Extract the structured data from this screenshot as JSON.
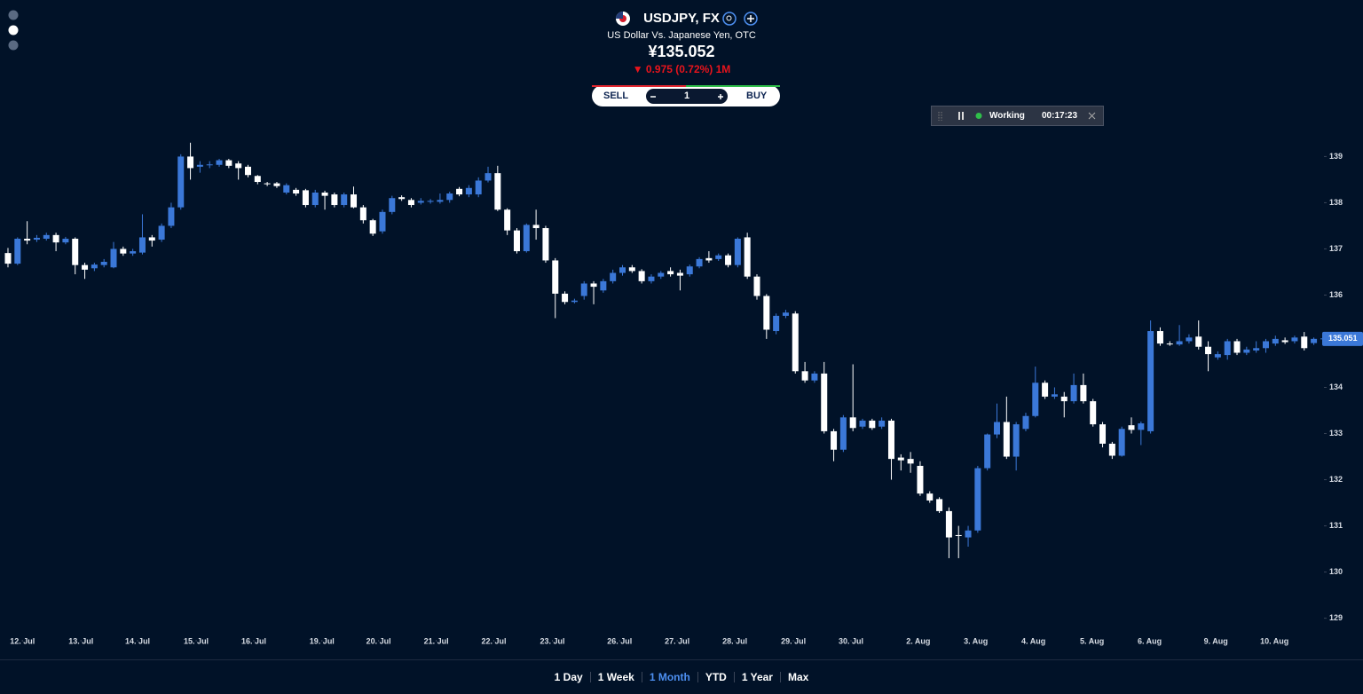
{
  "header": {
    "symbol": "USDJPY, FX",
    "description": "US Dollar Vs. Japanese Yen, OTC",
    "price": "¥135.052",
    "change": "▼ 0.975 (0.72%) 1M"
  },
  "trade": {
    "sell": "SELL",
    "quantity": "1",
    "buy": "BUY"
  },
  "status": {
    "label": "Working",
    "timer": "00:17:23"
  },
  "ranges": [
    "1 Day",
    "1 Week",
    "1 Month",
    "YTD",
    "1 Year",
    "Max"
  ],
  "active_range": 2,
  "chart_data": {
    "type": "candlestick",
    "up_color": "#3b78d8",
    "down_color": "#ffffff",
    "xlim": [
      -0.83,
      136.87
    ],
    "ylim": [
      128.55,
      139.7
    ],
    "yticks": [
      129,
      130,
      131,
      132,
      133,
      134,
      135,
      136,
      137,
      138,
      139
    ],
    "xticks": [
      {
        "value": 1.5,
        "label": "12. Jul"
      },
      {
        "value": 7.6,
        "label": "13. Jul"
      },
      {
        "value": 13.5,
        "label": "14. Jul"
      },
      {
        "value": 19.6,
        "label": "15. Jul"
      },
      {
        "value": 25.6,
        "label": "16. Jul"
      },
      {
        "value": 32.7,
        "label": "19. Jul"
      },
      {
        "value": 38.6,
        "label": "20. Jul"
      },
      {
        "value": 44.6,
        "label": "21. Jul"
      },
      {
        "value": 50.6,
        "label": "22. Jul"
      },
      {
        "value": 56.7,
        "label": "23. Jul"
      },
      {
        "value": 63.7,
        "label": "26. Jul"
      },
      {
        "value": 69.7,
        "label": "27. Jul"
      },
      {
        "value": 75.7,
        "label": "28. Jul"
      },
      {
        "value": 81.8,
        "label": "29. Jul"
      },
      {
        "value": 87.8,
        "label": "30. Jul"
      },
      {
        "value": 94.8,
        "label": "2. Aug"
      },
      {
        "value": 100.8,
        "label": "3. Aug"
      },
      {
        "value": 106.8,
        "label": "4. Aug"
      },
      {
        "value": 112.9,
        "label": "5. Aug"
      },
      {
        "value": 118.9,
        "label": "6. Aug"
      },
      {
        "value": 125.8,
        "label": "9. Aug"
      },
      {
        "value": 131.9,
        "label": "10. Aug"
      }
    ],
    "last_price": 135.051,
    "open": [
      136.91,
      136.68,
      137.22,
      137.2,
      137.22,
      137.3,
      137.14,
      137.22,
      136.65,
      136.58,
      136.65,
      136.6,
      137.0,
      136.9,
      136.92,
      137.25,
      137.2,
      137.5,
      137.9,
      139.0,
      138.78,
      138.82,
      138.82,
      138.92,
      138.85,
      138.78,
      138.58,
      138.42,
      138.42,
      138.22,
      138.28,
      138.27,
      137.95,
      138.22,
      138.18,
      137.95,
      138.18,
      137.9,
      137.62,
      137.38,
      137.8,
      138.12,
      138.06,
      138.0,
      138.02,
      138.02,
      138.06,
      138.3,
      138.18,
      138.18,
      138.48,
      138.64,
      137.85,
      137.4,
      136.95,
      137.52,
      137.45,
      136.75,
      136.03,
      135.85,
      135.98,
      136.25,
      136.1,
      136.3,
      136.48,
      136.6,
      136.52,
      136.3,
      136.4,
      136.52,
      136.48,
      136.45,
      136.62,
      136.8,
      136.78,
      136.86,
      136.65,
      137.25,
      136.4,
      135.98,
      135.22,
      135.55,
      135.6,
      134.35,
      134.15,
      134.3,
      133.05,
      132.65,
      133.35,
      133.15,
      133.28,
      133.15,
      133.28,
      132.48,
      132.45,
      132.3,
      131.7,
      131.58,
      131.32,
      130.8,
      130.75,
      130.9,
      132.25,
      132.98,
      133.25,
      132.5,
      133.1,
      133.38,
      134.1,
      133.8,
      133.8,
      133.7,
      134.05,
      133.7,
      133.2,
      132.78,
      132.52,
      133.18,
      133.08,
      133.05,
      135.22,
      134.95,
      134.93,
      135.0,
      135.1,
      134.88,
      134.65,
      134.7,
      135.0,
      134.75,
      134.8,
      134.85,
      134.95,
      135.02,
      135.0,
      135.1,
      134.96
    ],
    "high": [
      137.02,
      137.25,
      137.6,
      137.3,
      137.35,
      137.35,
      137.26,
      137.25,
      136.7,
      136.7,
      136.78,
      137.15,
      137.05,
      137.0,
      137.75,
      137.3,
      137.55,
      138.0,
      139.05,
      139.3,
      138.9,
      138.9,
      138.95,
      138.95,
      138.9,
      138.82,
      138.6,
      138.45,
      138.45,
      138.42,
      138.32,
      138.3,
      138.28,
      138.26,
      138.22,
      138.22,
      138.35,
      137.95,
      137.65,
      137.85,
      138.15,
      138.16,
      138.1,
      138.1,
      138.08,
      138.2,
      138.24,
      138.34,
      138.38,
      138.55,
      138.78,
      138.8,
      137.88,
      137.45,
      137.55,
      137.85,
      137.5,
      136.8,
      136.08,
      135.92,
      136.3,
      136.3,
      136.35,
      136.55,
      136.65,
      136.65,
      136.56,
      136.45,
      136.52,
      136.6,
      136.55,
      136.66,
      136.82,
      136.95,
      136.9,
      136.9,
      137.25,
      137.35,
      136.45,
      136.02,
      135.6,
      135.68,
      135.65,
      134.55,
      134.35,
      134.55,
      133.1,
      133.4,
      134.5,
      133.32,
      133.32,
      133.35,
      133.32,
      132.55,
      132.6,
      132.4,
      131.75,
      131.62,
      131.4,
      131.0,
      131.0,
      132.3,
      133.0,
      133.65,
      133.8,
      133.25,
      133.45,
      134.45,
      134.15,
      134.0,
      133.9,
      134.3,
      134.3,
      133.75,
      133.25,
      132.82,
      133.15,
      133.35,
      133.26,
      135.45,
      135.3,
      135.0,
      135.35,
      135.15,
      135.45,
      135.0,
      134.78,
      135.05,
      135.05,
      134.88,
      135.0,
      135.05,
      135.12,
      135.08,
      135.12,
      135.2,
      135.08
    ],
    "low": [
      136.6,
      136.65,
      137.1,
      137.15,
      137.18,
      136.95,
      137.1,
      136.45,
      136.35,
      136.52,
      136.6,
      136.58,
      136.85,
      136.85,
      136.88,
      137.05,
      137.15,
      137.45,
      137.85,
      138.5,
      138.65,
      138.75,
      138.78,
      138.75,
      138.5,
      138.55,
      138.4,
      138.36,
      138.32,
      138.18,
      138.15,
      137.9,
      137.9,
      137.85,
      137.9,
      137.9,
      137.88,
      137.55,
      137.28,
      137.33,
      137.75,
      138.04,
      137.9,
      137.96,
      137.98,
      137.98,
      138.0,
      138.14,
      138.12,
      138.12,
      138.44,
      137.82,
      137.3,
      136.9,
      136.92,
      137.2,
      136.7,
      135.5,
      135.8,
      135.82,
      135.9,
      135.8,
      136.05,
      136.25,
      136.42,
      136.48,
      136.25,
      136.25,
      136.35,
      136.4,
      136.1,
      136.4,
      136.58,
      136.7,
      136.74,
      136.6,
      136.6,
      136.35,
      135.9,
      135.05,
      135.15,
      135.5,
      134.3,
      134.1,
      134.1,
      133.0,
      132.4,
      132.6,
      133.05,
      133.1,
      133.08,
      133.1,
      132.0,
      132.2,
      132.15,
      131.65,
      131.5,
      131.28,
      130.3,
      130.3,
      130.55,
      130.85,
      132.2,
      132.9,
      132.45,
      132.2,
      133.05,
      133.35,
      133.75,
      133.75,
      133.35,
      133.65,
      133.65,
      133.15,
      132.7,
      132.45,
      132.5,
      133.0,
      132.75,
      133.0,
      134.9,
      134.9,
      134.9,
      134.95,
      134.82,
      134.35,
      134.6,
      134.6,
      134.7,
      134.7,
      134.75,
      134.75,
      134.9,
      134.94,
      134.95,
      134.8,
      134.92
    ],
    "close": [
      136.68,
      137.22,
      137.18,
      137.24,
      137.3,
      137.14,
      137.22,
      136.65,
      136.55,
      136.66,
      136.72,
      137.0,
      136.9,
      136.95,
      137.25,
      137.18,
      137.5,
      137.9,
      139.0,
      138.75,
      138.82,
      138.83,
      138.92,
      138.8,
      138.75,
      138.6,
      138.45,
      138.4,
      138.36,
      138.38,
      138.2,
      137.95,
      138.22,
      138.15,
      137.95,
      138.18,
      137.9,
      137.62,
      137.33,
      137.8,
      138.1,
      138.08,
      137.95,
      138.04,
      138.04,
      138.06,
      138.2,
      138.18,
      138.32,
      138.48,
      138.64,
      137.85,
      137.4,
      136.95,
      137.52,
      137.45,
      136.75,
      136.03,
      135.85,
      135.88,
      136.25,
      136.18,
      136.3,
      136.48,
      136.6,
      136.52,
      136.3,
      136.4,
      136.48,
      136.45,
      136.42,
      136.62,
      136.78,
      136.75,
      136.86,
      136.65,
      137.22,
      136.4,
      135.98,
      135.25,
      135.55,
      135.62,
      134.35,
      134.15,
      134.3,
      133.05,
      132.65,
      133.35,
      133.12,
      133.28,
      133.12,
      133.28,
      132.45,
      132.42,
      132.35,
      131.7,
      131.55,
      131.32,
      130.75,
      130.78,
      130.9,
      132.25,
      132.98,
      133.25,
      132.5,
      133.2,
      133.38,
      134.1,
      133.8,
      133.85,
      133.7,
      134.05,
      133.7,
      133.2,
      132.78,
      132.52,
      133.1,
      133.08,
      133.22,
      135.22,
      134.95,
      134.93,
      135.0,
      135.08,
      134.88,
      134.72,
      134.72,
      135.0,
      134.75,
      134.82,
      134.85,
      135.0,
      135.05,
      134.98,
      135.08,
      134.85,
      135.051
    ]
  }
}
